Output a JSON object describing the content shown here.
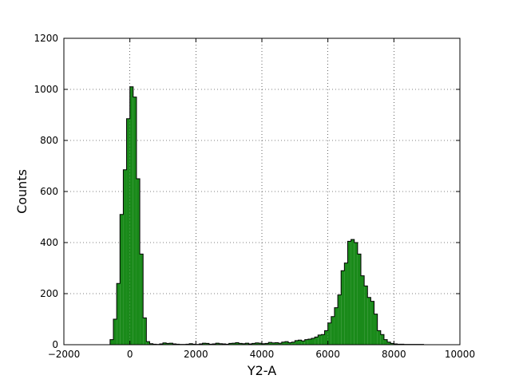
{
  "chart_data": {
    "type": "histogram",
    "title": "",
    "xlabel": "Y2-A",
    "ylabel": "Counts",
    "xlim": [
      -2000,
      10000
    ],
    "ylim": [
      0,
      1200
    ],
    "xticks": [
      -2000,
      0,
      2000,
      4000,
      6000,
      8000,
      10000
    ],
    "xtick_labels": [
      "−2000",
      "0",
      "2000",
      "4000",
      "6000",
      "8000",
      "10000"
    ],
    "yticks": [
      0,
      200,
      400,
      600,
      800,
      1000,
      1200
    ],
    "ytick_labels": [
      "0",
      "200",
      "400",
      "600",
      "800",
      "1000",
      "1200"
    ],
    "grid": true,
    "fill_color": "#1a8a1a",
    "edge_color": "#000000",
    "bin_start": -600,
    "bin_width": 100,
    "counts": [
      20,
      100,
      240,
      510,
      685,
      885,
      1010,
      970,
      650,
      355,
      105,
      12,
      4,
      2,
      1,
      3,
      7,
      5,
      6,
      3,
      2,
      1,
      1,
      2,
      4,
      2,
      1,
      3,
      6,
      5,
      2,
      3,
      6,
      4,
      3,
      2,
      5,
      6,
      8,
      5,
      4,
      6,
      3,
      5,
      7,
      6,
      4,
      5,
      9,
      7,
      8,
      6,
      10,
      12,
      8,
      10,
      16,
      18,
      15,
      20,
      22,
      25,
      30,
      38,
      40,
      55,
      85,
      110,
      145,
      195,
      290,
      320,
      405,
      412,
      400,
      355,
      270,
      230,
      185,
      170,
      120,
      55,
      40,
      20,
      10,
      5,
      3,
      2,
      2,
      1,
      1,
      1,
      1,
      1,
      1
    ]
  }
}
